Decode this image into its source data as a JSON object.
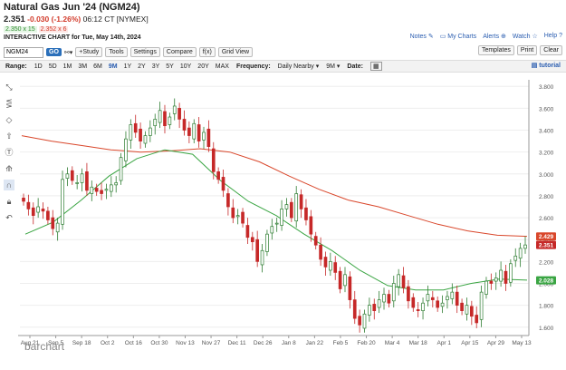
{
  "header": {
    "title": "Natural Gas Jun '24 (NGM24)",
    "last": "2.351",
    "change": "-0.030 (-1.26%)",
    "time": "06:12 CT [NYMEX]",
    "bid": "2.350 x 15",
    "ask": "2.352 x 6",
    "chart_title": "INTERACTIVE CHART for Tue, May 14th, 2024"
  },
  "toplinks": {
    "notes": "Notes",
    "my_charts": "My Charts",
    "alerts": "Alerts",
    "watch": "Watch",
    "help": "Help"
  },
  "toolbar": {
    "symbol": "NGM24",
    "go": "GO",
    "study": "+Study",
    "tools": "Tools",
    "settings": "Settings",
    "compare": "Compare",
    "fx": "f(x)",
    "grid": "Grid View",
    "templates": "Templates",
    "print": "Print",
    "clear": "Clear"
  },
  "range": {
    "label": "Range:",
    "options": [
      "1D",
      "5D",
      "1M",
      "3M",
      "6M",
      "9M",
      "1Y",
      "2Y",
      "3Y",
      "5Y",
      "10Y",
      "20Y",
      "MAX"
    ],
    "selected": "9M",
    "freq_label": "Frequency:",
    "freq_value": "Daily Nearby",
    "period_value": "9M",
    "date_label": "Date:",
    "tutorial": "tutorial"
  },
  "colors": {
    "up": "#2e7d32",
    "down": "#c62828",
    "ma_red": "#d9472b",
    "ma_green": "#3aa543",
    "link": "#2a5db0"
  },
  "icons": [
    "crosshair-icon",
    "fib-icon",
    "shape-icon",
    "arrow-icon",
    "text-icon",
    "pattern-icon",
    "magnet-icon",
    "lock-icon",
    "undo-icon"
  ],
  "chart_data": {
    "type": "candlestick",
    "x_ticks": [
      "Aug 21",
      "Sep 5",
      "Sep 18",
      "Oct 2",
      "Oct 16",
      "Oct 30",
      "Nov 13",
      "Nov 27",
      "Dec 11",
      "Dec 26",
      "Jan 8",
      "Jan 22",
      "Feb 5",
      "Feb 20",
      "Mar 4",
      "Mar 18",
      "Apr 1",
      "Apr 15",
      "Apr 29",
      "May 13"
    ],
    "y_ticks": [
      "3.800",
      "3.600",
      "3.400",
      "3.200",
      "3.000",
      "2.800",
      "2.600",
      "2.400",
      "2.200",
      "2.000",
      "1.800",
      "1.600"
    ],
    "ylim": [
      1.54,
      3.86
    ],
    "close": [
      2.75,
      2.68,
      2.62,
      2.7,
      2.66,
      2.58,
      2.5,
      2.55,
      2.95,
      3.0,
      2.94,
      2.92,
      3.0,
      2.85,
      2.88,
      2.84,
      2.82,
      2.86,
      2.9,
      2.92,
      3.15,
      3.32,
      3.45,
      3.38,
      3.3,
      3.35,
      3.42,
      3.5,
      3.58,
      3.44,
      3.52,
      3.62,
      3.5,
      3.4,
      3.35,
      3.46,
      3.3,
      3.38,
      3.25,
      3.02,
      2.95,
      2.85,
      2.7,
      2.6,
      2.62,
      2.55,
      2.42,
      2.38,
      2.2,
      2.3,
      2.45,
      2.52,
      2.55,
      2.68,
      2.72,
      2.6,
      2.82,
      2.68,
      2.58,
      2.45,
      2.35,
      2.22,
      2.15,
      2.2,
      2.1,
      1.95,
      2.08,
      1.85,
      1.68,
      1.62,
      1.72,
      1.8,
      1.75,
      1.85,
      1.9,
      1.82,
      2.0,
      2.08,
      1.96,
      1.84,
      1.78,
      1.75,
      1.82,
      1.9,
      1.85,
      1.78,
      1.82,
      1.88,
      1.92,
      1.8,
      1.75,
      1.8,
      1.7,
      1.64,
      1.92,
      2.02,
      2.0,
      2.05,
      2.12,
      2.0,
      2.18,
      2.25,
      2.32,
      2.351
    ],
    "annotations": [
      {
        "label": "2.429",
        "value": 2.429,
        "color": "#d9472b"
      },
      {
        "label": "2.351",
        "value": 2.351,
        "color": "#c62828"
      },
      {
        "label": "2.028",
        "value": 2.028,
        "color": "#3aa543"
      }
    ],
    "series": [
      {
        "name": "",
        "color": "#d9472b",
        "values": [
          3.35,
          3.3,
          3.26,
          3.22,
          3.2,
          3.21,
          3.23,
          3.2,
          3.11,
          2.98,
          2.86,
          2.76,
          2.7,
          2.62,
          2.54,
          2.48,
          2.44,
          2.43
        ]
      },
      {
        "name": "",
        "color": "#3aa543",
        "values": [
          2.45,
          2.56,
          2.76,
          2.98,
          3.14,
          3.22,
          3.18,
          2.94,
          2.75,
          2.62,
          2.45,
          2.3,
          2.12,
          1.98,
          1.94,
          1.94,
          2.0,
          2.04,
          2.03
        ]
      }
    ]
  },
  "watermark": "barchart"
}
